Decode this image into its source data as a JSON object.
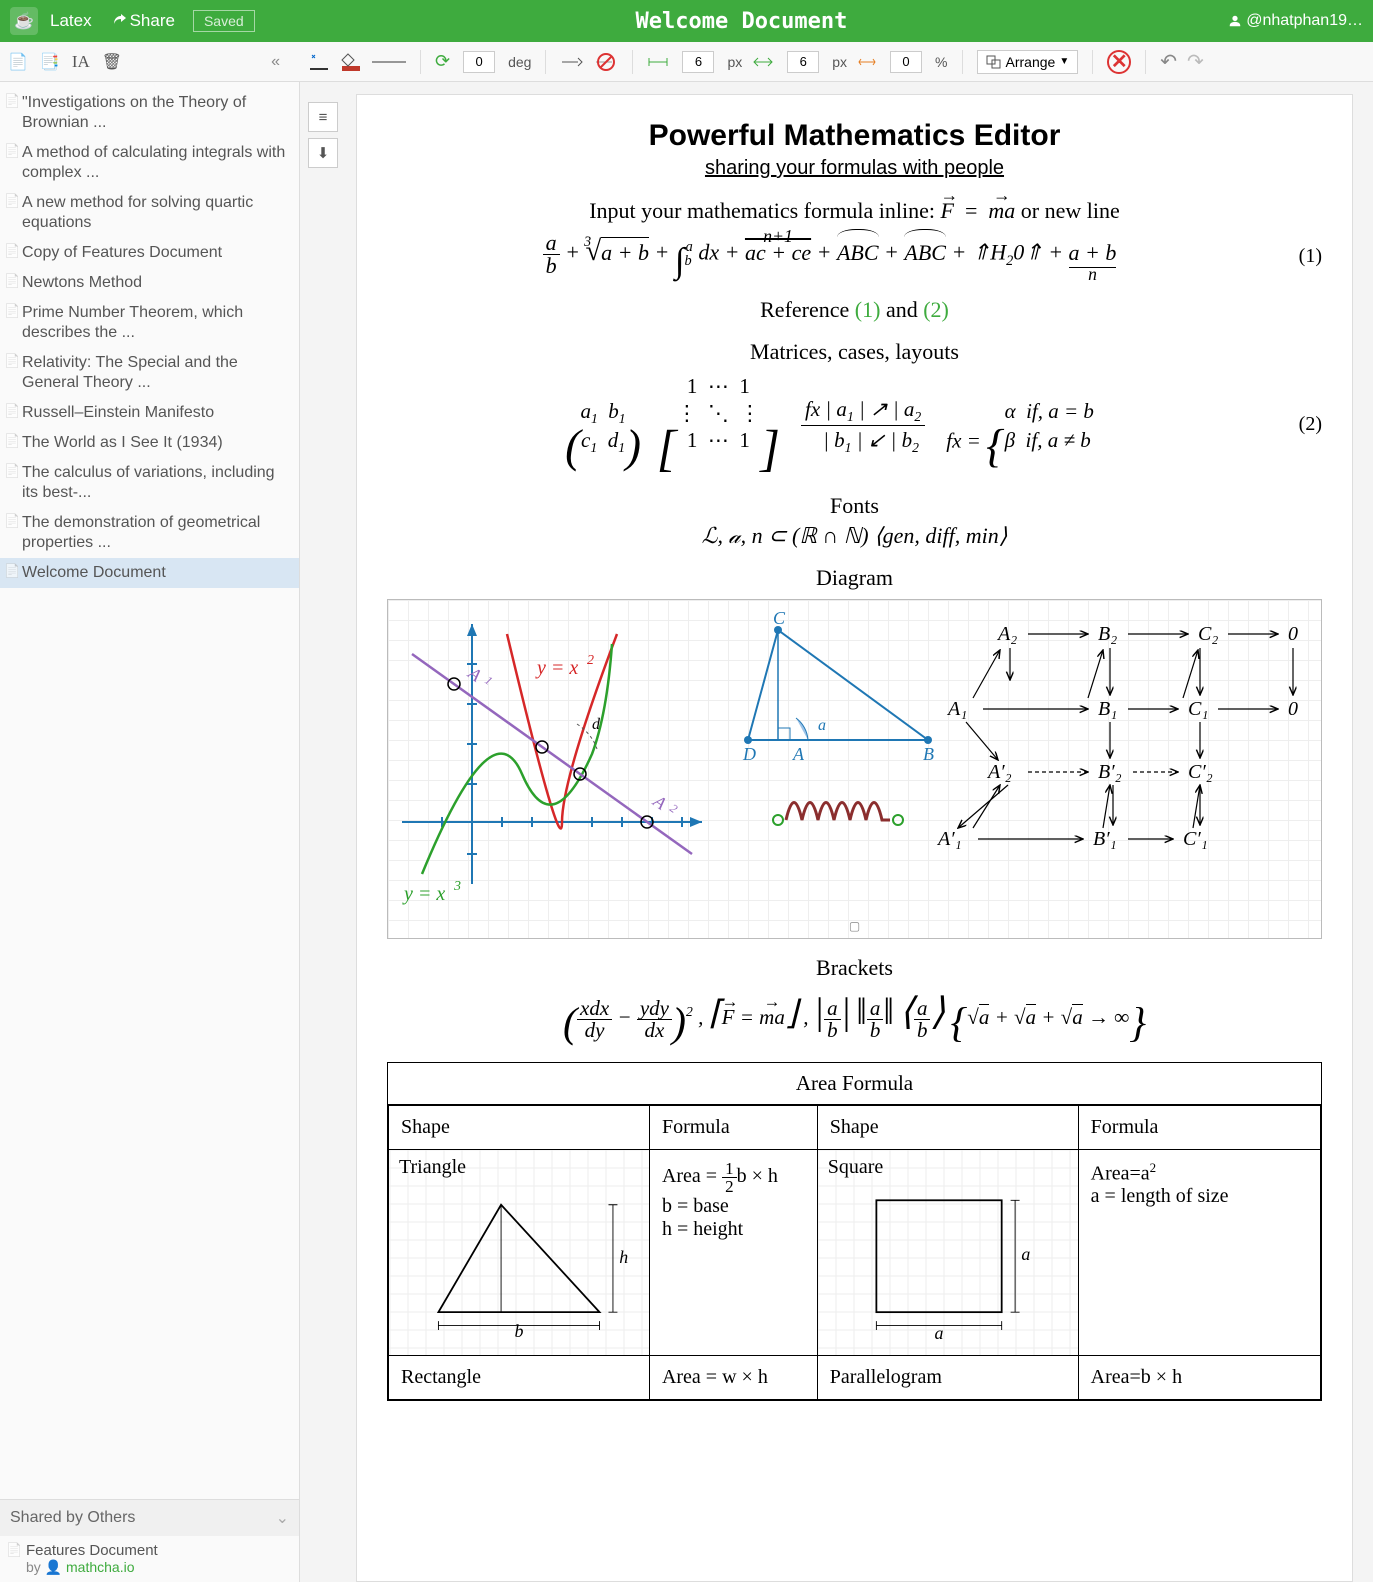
{
  "header": {
    "latex_label": "Latex",
    "share_label": "Share",
    "saved_label": "Saved",
    "title": "Welcome Document",
    "username": "@nhatphan19…"
  },
  "toolbar": {
    "rotate_value": "0",
    "rotate_unit": "deg",
    "w_value": "6",
    "w_unit": "px",
    "h_value": "6",
    "h_unit": "px",
    "pct_value": "0",
    "pct_unit": "%",
    "arrange_label": "Arrange"
  },
  "sidebar": {
    "docs": [
      "\"Investigations on the Theory of Brownian ...",
      "A method of calculating integrals with complex ...",
      "A new method for solving quartic equations",
      "Copy of Features Document",
      "Newtons Method",
      "Prime Number Theorem, which describes the ...",
      "Relativity: The Special and the General Theory ...",
      "Russell–Einstein Manifesto",
      "The World as I See It (1934)",
      "The calculus of variations, including its best-...",
      "The demonstration of geometrical properties ...",
      "Welcome Document"
    ],
    "selected_index": 11,
    "shared_header": "Shared by Others",
    "shared_doc": "Features Document",
    "shared_by_prefix": "by ",
    "shared_by_link": "mathcha.io"
  },
  "doc": {
    "title": "Powerful Mathematics Editor",
    "subtitle": "sharing your formulas with people",
    "inline_prefix": "Input your mathematics formula inline: ",
    "inline_mid": " = ",
    "inline_suffix": " or new line",
    "eq1_num": "(1)",
    "ref_text_a": "Reference ",
    "ref_1": "(1)",
    "ref_and": " and ",
    "ref_2": "(2)",
    "matrices_label": "Matrices, cases, layouts",
    "eq2_num": "(2)",
    "fonts_label": "Fonts",
    "fonts_line": "ℒ, 𝒶, n ⊂ (ℝ ∩ ℕ) ⟨gen, diff, min⟩",
    "diagram_label": "Diagram",
    "brackets_label": "Brackets",
    "table": {
      "header": "Area Formula",
      "col_shape": "Shape",
      "col_formula": "Formula",
      "triangle": "Triangle",
      "triangle_formula_var_b": "b = base",
      "triangle_formula_var_h": "h = height",
      "square": "Square",
      "square_formula_line2": "a = length of size",
      "rectangle": "Rectangle",
      "rect_formula": "Area = w × h",
      "parallelogram": "Parallelogram",
      "para_formula": "Area=b × h"
    },
    "diagram": {
      "graph_labels": {
        "y_eq_x2": "y = x",
        "y_eq_x3": "y = x",
        "A1": "A",
        "A2": "A"
      },
      "tri_labels": {
        "C": "C",
        "D": "D",
        "A": "A",
        "B": "B",
        "a": "a",
        "d": "d"
      },
      "cd": {
        "nodes": [
          "A₂",
          "B₂",
          "C₂",
          "0",
          "A₁",
          "B₁",
          "C₁",
          "0",
          "A′₂",
          "B′₂",
          "C′₂",
          "A′₁",
          "B′₁",
          "C′₁"
        ]
      }
    },
    "colors": {
      "red": "#d62728",
      "green": "#2ca02c",
      "blue": "#1f77b4",
      "purple": "#9467bd",
      "darkred": "#8b2e2e"
    }
  }
}
